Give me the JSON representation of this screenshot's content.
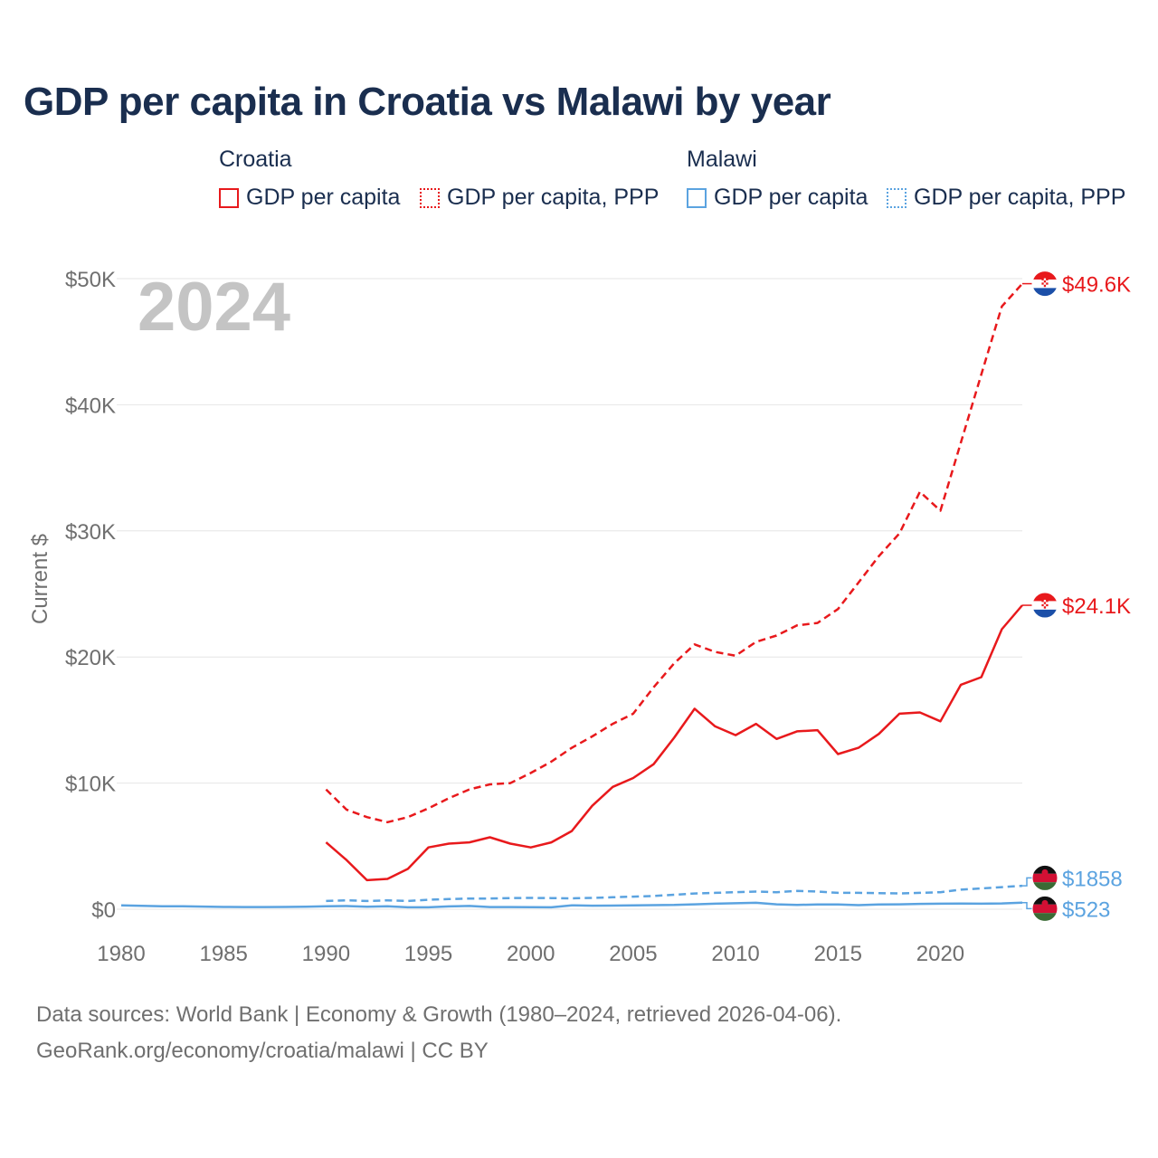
{
  "title": "GDP per capita in Croatia vs Malawi by year",
  "legend": {
    "groups": [
      {
        "country": "Croatia",
        "items": [
          {
            "label": "GDP per capita",
            "color": "#e8191c",
            "style": "solid"
          },
          {
            "label": "GDP per capita, PPP",
            "color": "#e8191c",
            "style": "dotted"
          }
        ]
      },
      {
        "country": "Malawi",
        "items": [
          {
            "label": "GDP per capita",
            "color": "#5ba3e0",
            "style": "solid"
          },
          {
            "label": "GDP per capita, PPP",
            "color": "#5ba3e0",
            "style": "dotted"
          }
        ]
      }
    ]
  },
  "year_watermark": "2024",
  "footer": {
    "line1": "Data sources: World Bank | Economy & Growth (1980–2024, retrieved 2026-04-06).",
    "line2": "GeoRank.org/economy/croatia/malawi | CC BY"
  },
  "chart_data": {
    "type": "line",
    "title": "GDP per capita in Croatia vs Malawi by year",
    "xlabel": "",
    "ylabel": "Current $",
    "xlim": [
      1980,
      2024
    ],
    "ylim": [
      0,
      50000
    ],
    "x_ticks": [
      1980,
      1985,
      1990,
      1995,
      2000,
      2005,
      2010,
      2015,
      2020
    ],
    "x_tick_labels": [
      "1980",
      "1985",
      "1990",
      "1995",
      "2000",
      "2005",
      "2010",
      "2015",
      "2020"
    ],
    "y_ticks": [
      0,
      10000,
      20000,
      30000,
      40000,
      50000
    ],
    "y_tick_labels": [
      "$0",
      "$10K",
      "$20K",
      "$30K",
      "$40K",
      "$50K"
    ],
    "grid": true,
    "series": [
      {
        "name": "Croatia GDP per capita, PPP",
        "country": "Croatia",
        "color": "#e8191c",
        "dash": "dashed",
        "end_label": "$49.6K",
        "x": [
          1990,
          1991,
          1992,
          1993,
          1994,
          1995,
          1996,
          1997,
          1998,
          1999,
          2000,
          2001,
          2002,
          2003,
          2004,
          2005,
          2006,
          2007,
          2008,
          2009,
          2010,
          2011,
          2012,
          2013,
          2014,
          2015,
          2016,
          2017,
          2018,
          2019,
          2020,
          2021,
          2022,
          2023,
          2024
        ],
        "values": [
          9500,
          7900,
          7300,
          6900,
          7300,
          8000,
          8800,
          9500,
          9900,
          10000,
          10800,
          11700,
          12800,
          13700,
          14700,
          15500,
          17600,
          19500,
          21000,
          20400,
          20100,
          21200,
          21700,
          22500,
          22700,
          23800,
          25900,
          28000,
          29800,
          33100,
          31600,
          37000,
          42400,
          47800,
          49600
        ]
      },
      {
        "name": "Croatia GDP per capita",
        "country": "Croatia",
        "color": "#e8191c",
        "dash": "solid",
        "end_label": "$24.1K",
        "x": [
          1990,
          1991,
          1992,
          1993,
          1994,
          1995,
          1996,
          1997,
          1998,
          1999,
          2000,
          2001,
          2002,
          2003,
          2004,
          2005,
          2006,
          2007,
          2008,
          2009,
          2010,
          2011,
          2012,
          2013,
          2014,
          2015,
          2016,
          2017,
          2018,
          2019,
          2020,
          2021,
          2022,
          2023,
          2024
        ],
        "values": [
          5300,
          3900,
          2300,
          2400,
          3200,
          4900,
          5200,
          5300,
          5700,
          5200,
          4900,
          5300,
          6200,
          8200,
          9700,
          10400,
          11500,
          13600,
          15900,
          14500,
          13800,
          14700,
          13500,
          14100,
          14200,
          12300,
          12800,
          13900,
          15500,
          15600,
          14900,
          17800,
          18400,
          22200,
          24100
        ]
      },
      {
        "name": "Malawi GDP per capita, PPP",
        "country": "Malawi",
        "color": "#5ba3e0",
        "dash": "dashed",
        "end_label": "$1858",
        "x": [
          1990,
          1991,
          1992,
          1993,
          1994,
          1995,
          1996,
          1997,
          1998,
          1999,
          2000,
          2001,
          2002,
          2003,
          2004,
          2005,
          2006,
          2007,
          2008,
          2009,
          2010,
          2011,
          2012,
          2013,
          2014,
          2015,
          2016,
          2017,
          2018,
          2019,
          2020,
          2021,
          2022,
          2023,
          2024
        ],
        "values": [
          650,
          700,
          650,
          700,
          650,
          750,
          800,
          850,
          850,
          880,
          900,
          880,
          860,
          900,
          950,
          1000,
          1050,
          1150,
          1250,
          1300,
          1350,
          1400,
          1350,
          1450,
          1400,
          1300,
          1300,
          1280,
          1250,
          1300,
          1350,
          1550,
          1650,
          1750,
          1858
        ]
      },
      {
        "name": "Malawi GDP per capita",
        "country": "Malawi",
        "color": "#5ba3e0",
        "dash": "solid",
        "end_label": "$523",
        "x": [
          1980,
          1981,
          1982,
          1983,
          1984,
          1985,
          1986,
          1987,
          1988,
          1989,
          1990,
          1991,
          1992,
          1993,
          1994,
          1995,
          1996,
          1997,
          1998,
          1999,
          2000,
          2001,
          2002,
          2003,
          2004,
          2005,
          2006,
          2007,
          2008,
          2009,
          2010,
          2011,
          2012,
          2013,
          2014,
          2015,
          2016,
          2017,
          2018,
          2019,
          2020,
          2021,
          2022,
          2023,
          2024
        ],
        "values": [
          300,
          270,
          240,
          230,
          210,
          180,
          170,
          170,
          180,
          200,
          230,
          250,
          200,
          230,
          150,
          150,
          220,
          260,
          170,
          170,
          160,
          150,
          310,
          280,
          290,
          300,
          320,
          340,
          390,
          440,
          470,
          510,
          390,
          340,
          380,
          380,
          320,
          370,
          390,
          420,
          440,
          450,
          440,
          460,
          523
        ]
      }
    ]
  }
}
